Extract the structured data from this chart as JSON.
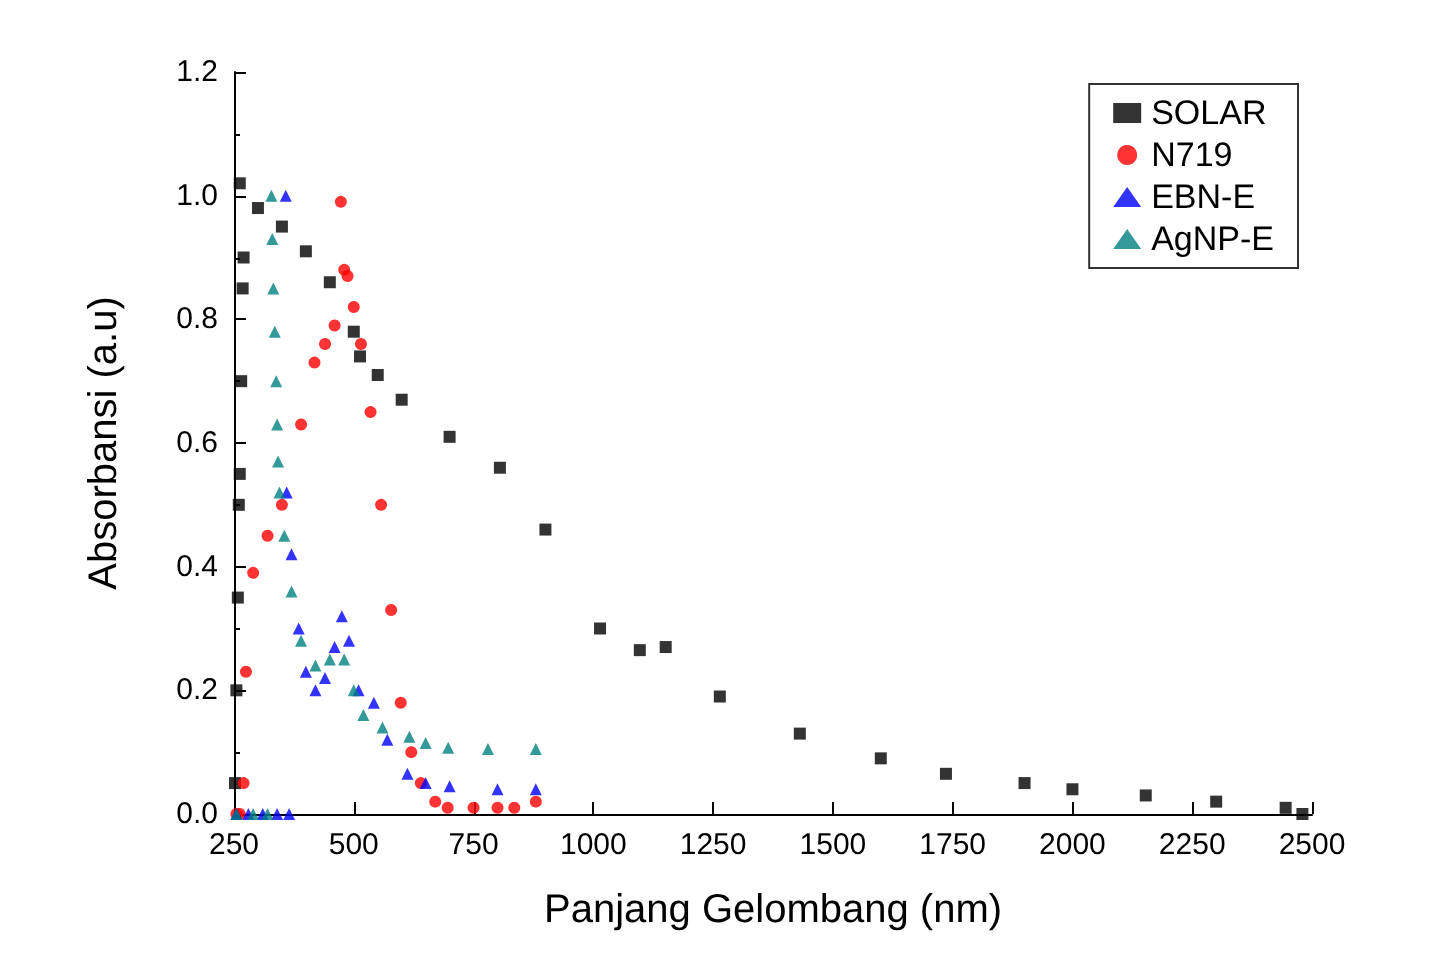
{
  "chart_data": {
    "type": "scatter",
    "xlabel": "Panjang Gelombang (nm)",
    "ylabel": "Absorbansi (a.u)",
    "xlim": [
      250,
      2500
    ],
    "xticks": [
      250,
      500,
      750,
      1000,
      1250,
      1500,
      1750,
      2000,
      2250,
      2500
    ],
    "ylim": [
      0,
      1.2
    ],
    "yticks": [
      {
        "value": 0,
        "label": "0.0"
      },
      {
        "value": 0.2,
        "label": "0.2"
      },
      {
        "value": 0.4,
        "label": "0.4"
      },
      {
        "value": 0.6,
        "label": "0.6"
      },
      {
        "value": 0.8,
        "label": "0.8"
      },
      {
        "value": 1,
        "label": "1.0"
      },
      {
        "value": 1.2,
        "label": "1.2"
      }
    ],
    "grid": false,
    "legend": "top right",
    "series": [
      {
        "name": "SOLAR",
        "color": "#000000",
        "marker": "square",
        "x": [
          252,
          255,
          258,
          260,
          262,
          265,
          268,
          270,
          262,
          300,
          350,
          400,
          450,
          500,
          513,
          550,
          600,
          700,
          805,
          900,
          1014,
          1097,
          1151,
          1264,
          1431,
          1600,
          1736,
          1900,
          2000,
          2153,
          2300,
          2445,
          2480
        ],
        "values": [
          0.05,
          0.2,
          0.35,
          0.5,
          0.55,
          0.7,
          0.85,
          0.9,
          1.02,
          0.98,
          0.95,
          0.91,
          0.86,
          0.78,
          0.74,
          0.71,
          0.67,
          0.61,
          0.56,
          0.46,
          0.3,
          0.265,
          0.27,
          0.19,
          0.13,
          0.09,
          0.065,
          0.05,
          0.04,
          0.03,
          0.02,
          0.01,
          0.0
        ]
      },
      {
        "name": "N719",
        "color": "#ff0000",
        "marker": "circle",
        "x": [
          255,
          262,
          270,
          275,
          290,
          320,
          350,
          390,
          418,
          440,
          460,
          473,
          480,
          487,
          500,
          515,
          535,
          557,
          578,
          598,
          620,
          640,
          670,
          696,
          750,
          800,
          835,
          880
        ],
        "values": [
          0.0,
          0.0,
          0.05,
          0.23,
          0.39,
          0.45,
          0.5,
          0.63,
          0.73,
          0.76,
          0.79,
          0.99,
          0.88,
          0.87,
          0.82,
          0.76,
          0.65,
          0.5,
          0.33,
          0.18,
          0.1,
          0.05,
          0.02,
          0.01,
          0.01,
          0.01,
          0.01,
          0.02
        ]
      },
      {
        "name": "EBN-E",
        "color": "#0000ff",
        "marker": "triangle",
        "x": [
          255,
          280,
          310,
          340,
          365,
          358,
          360,
          370,
          385,
          400,
          420,
          440,
          460,
          475,
          490,
          510,
          542,
          570,
          612,
          650,
          700,
          800,
          880
        ],
        "values": [
          0.0,
          0.0,
          0.0,
          0.0,
          0.0,
          1.0,
          0.52,
          0.42,
          0.3,
          0.23,
          0.2,
          0.22,
          0.27,
          0.32,
          0.28,
          0.2,
          0.18,
          0.12,
          0.065,
          0.05,
          0.045,
          0.04,
          0.04
        ]
      },
      {
        "name": "AgNP-E",
        "color": "#008080",
        "marker": "triangle",
        "x": [
          255,
          290,
          320,
          328,
          330,
          332,
          335,
          338,
          340,
          342,
          345,
          355,
          370,
          390,
          420,
          450,
          480,
          500,
          520,
          560,
          616,
          650,
          697,
          780,
          880
        ],
        "values": [
          0.0,
          0.0,
          0.0,
          1.0,
          0.93,
          0.85,
          0.78,
          0.7,
          0.63,
          0.57,
          0.52,
          0.45,
          0.36,
          0.28,
          0.24,
          0.25,
          0.25,
          0.2,
          0.16,
          0.14,
          0.125,
          0.115,
          0.107,
          0.105,
          0.105
        ]
      }
    ]
  }
}
